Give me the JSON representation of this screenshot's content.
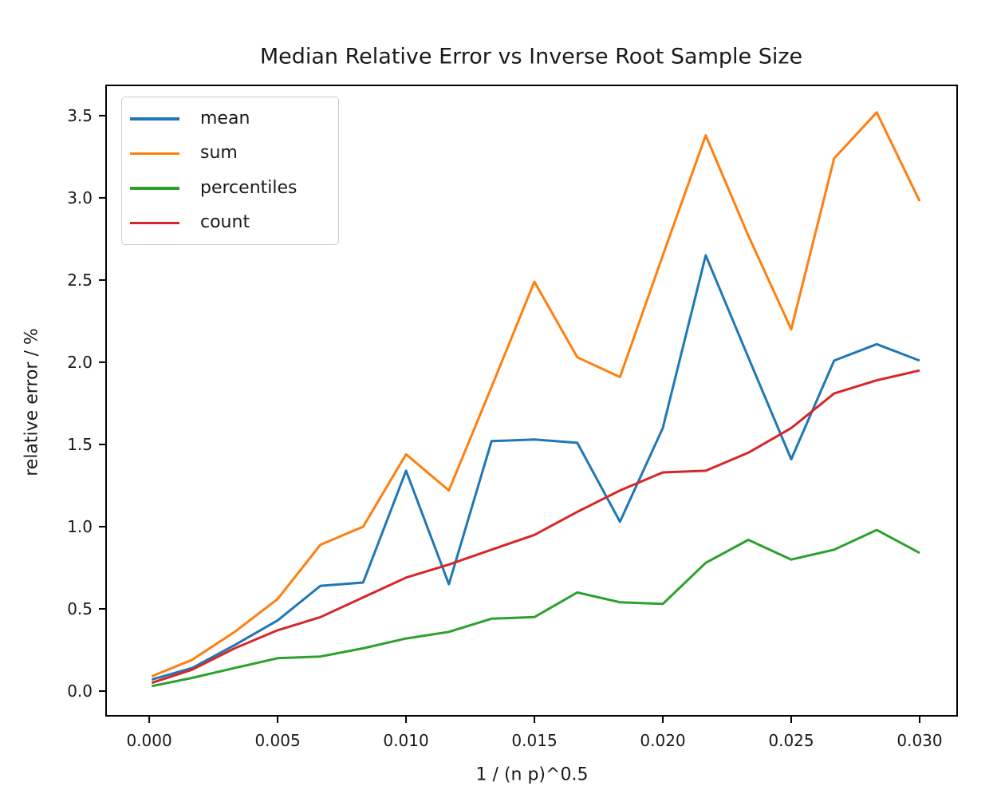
{
  "chart_data": {
    "type": "line",
    "title": "Median Relative Error vs Inverse Root Sample Size",
    "xlabel": "1 / (n p)^0.5",
    "ylabel": "relative error / %",
    "grid": false,
    "legend_position": "upper left",
    "xlim": [
      -0.00168,
      0.03146
    ],
    "ylim": [
      -0.1505,
      3.684
    ],
    "x_ticks": [
      0.0,
      0.005,
      0.01,
      0.015,
      0.02,
      0.025,
      0.03
    ],
    "x_tick_labels": [
      "0.000",
      "0.005",
      "0.010",
      "0.015",
      "0.020",
      "0.025",
      "0.030"
    ],
    "y_ticks": [
      0.0,
      0.5,
      1.0,
      1.5,
      2.0,
      2.5,
      3.0,
      3.5
    ],
    "y_tick_labels": [
      "0.0",
      "0.5",
      "1.0",
      "1.5",
      "2.0",
      "2.5",
      "3.0",
      "3.5"
    ],
    "x": [
      0.0001,
      0.00167,
      0.00333,
      0.005,
      0.00667,
      0.00833,
      0.01,
      0.01167,
      0.01333,
      0.015,
      0.01667,
      0.01833,
      0.02,
      0.02167,
      0.02333,
      0.025,
      0.02667,
      0.02833,
      0.03
    ],
    "series": [
      {
        "name": "mean",
        "color": "#1f77b4",
        "values": [
          0.07,
          0.14,
          0.28,
          0.43,
          0.64,
          0.66,
          1.34,
          0.65,
          1.52,
          1.53,
          1.51,
          1.03,
          1.6,
          2.65,
          2.03,
          1.41,
          2.01,
          2.11,
          2.01
        ]
      },
      {
        "name": "sum",
        "color": "#ff7f0e",
        "values": [
          0.09,
          0.19,
          0.36,
          0.56,
          0.89,
          1.0,
          1.44,
          1.22,
          1.85,
          2.49,
          2.03,
          1.91,
          2.65,
          3.38,
          2.77,
          2.2,
          3.24,
          3.52,
          2.98
        ]
      },
      {
        "name": "percentiles",
        "color": "#2ca02c",
        "values": [
          0.03,
          0.08,
          0.14,
          0.2,
          0.21,
          0.26,
          0.32,
          0.36,
          0.44,
          0.45,
          0.6,
          0.54,
          0.53,
          0.78,
          0.92,
          0.8,
          0.86,
          0.98,
          0.84
        ]
      },
      {
        "name": "count",
        "color": "#d62728",
        "values": [
          0.05,
          0.13,
          0.26,
          0.37,
          0.45,
          0.57,
          0.69,
          0.77,
          0.86,
          0.95,
          1.09,
          1.22,
          1.33,
          1.34,
          1.45,
          1.6,
          1.81,
          1.89,
          1.95
        ]
      }
    ],
    "colors": {
      "spine": "#000000",
      "text": "#1a1a1a",
      "background": "#ffffff",
      "legend_border": "#cccccc"
    }
  }
}
